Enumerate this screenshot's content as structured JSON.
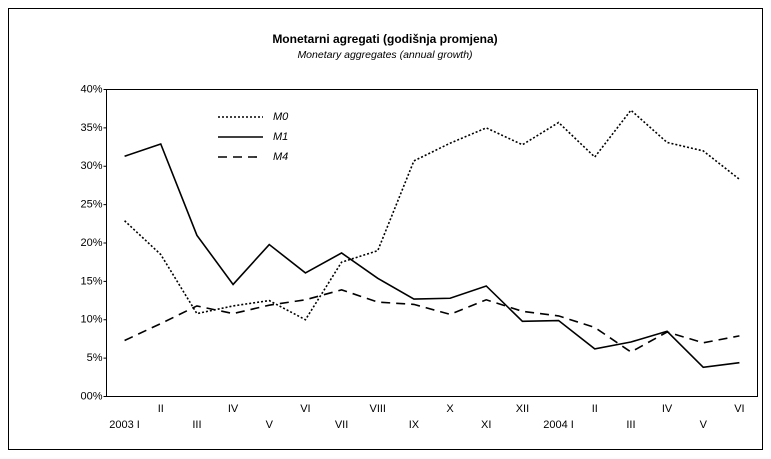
{
  "chart_data": {
    "type": "line",
    "title": "Monetarni agregati (godišnja promjena)",
    "subtitle": "Monetary aggregates (annual growth)",
    "categories": [
      "2003 I",
      "II",
      "III",
      "IV",
      "V",
      "VI",
      "VII",
      "VIII",
      "IX",
      "X",
      "XI",
      "XII",
      "2004 I",
      "II",
      "III",
      "IV",
      "V",
      "VI"
    ],
    "series": [
      {
        "name": "M0",
        "color": "#000000",
        "dash": "dotted",
        "values": [
          22.9,
          18.5,
          10.8,
          11.8,
          12.5,
          10.0,
          17.5,
          19.0,
          30.7,
          33.0,
          35.0,
          32.8,
          35.7,
          31.2,
          37.3,
          33.1,
          32.0,
          28.3
        ]
      },
      {
        "name": "M1",
        "color": "#000000",
        "dash": "solid",
        "values": [
          31.3,
          32.9,
          21.0,
          14.6,
          19.8,
          16.1,
          18.7,
          15.4,
          12.7,
          12.8,
          14.4,
          9.8,
          9.9,
          6.2,
          7.1,
          8.5,
          3.8,
          4.4
        ]
      },
      {
        "name": "M4",
        "color": "#000000",
        "dash": "dashed",
        "values": [
          7.3,
          9.5,
          11.8,
          10.8,
          11.9,
          12.6,
          13.9,
          12.3,
          12.0,
          10.7,
          12.6,
          11.1,
          10.5,
          9.0,
          5.8,
          8.4,
          7.0,
          7.9
        ]
      }
    ],
    "ylim": [
      0,
      40
    ],
    "yticks": [
      {
        "value": 0,
        "label": "00%"
      },
      {
        "value": 5,
        "label": "5%"
      },
      {
        "value": 10,
        "label": "10%"
      },
      {
        "value": 15,
        "label": "15%"
      },
      {
        "value": 20,
        "label": "20%"
      },
      {
        "value": 25,
        "label": "25%"
      },
      {
        "value": 30,
        "label": "30%"
      },
      {
        "value": 35,
        "label": "35%"
      },
      {
        "value": 40,
        "label": "40%"
      }
    ],
    "grid": false,
    "legend": "upper left"
  }
}
